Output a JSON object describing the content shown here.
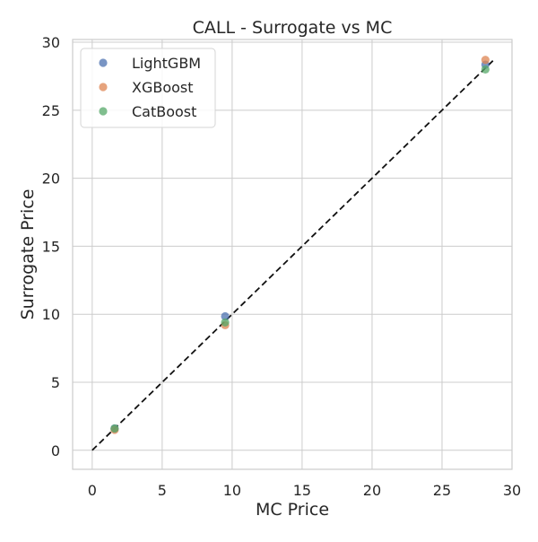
{
  "chart_data": {
    "type": "scatter",
    "title": "CALL - Surrogate vs MC",
    "xlabel": "MC Price",
    "ylabel": "Surrogate Price",
    "xlim": [
      -1.4,
      30.0
    ],
    "ylim": [
      -1.4,
      30.2
    ],
    "xticks": [
      0,
      5,
      10,
      15,
      20,
      25,
      30
    ],
    "yticks": [
      0,
      5,
      10,
      15,
      20,
      25,
      30
    ],
    "grid": true,
    "legend_position": "top-left",
    "reference_line": {
      "style": "dashed",
      "color": "#111111",
      "from": [
        0,
        0
      ],
      "to": [
        28.7,
        28.7
      ]
    },
    "series": [
      {
        "name": "LightGBM",
        "color": "#4c72b0",
        "x": [
          1.6,
          9.5,
          28.1
        ],
        "y": [
          1.6,
          9.85,
          28.35
        ]
      },
      {
        "name": "XGBoost",
        "color": "#dd8452",
        "x": [
          1.6,
          9.5,
          28.1
        ],
        "y": [
          1.5,
          9.2,
          28.7
        ]
      },
      {
        "name": "CatBoost",
        "color": "#55a868",
        "x": [
          1.6,
          9.5,
          28.1
        ],
        "y": [
          1.6,
          9.4,
          28.0
        ]
      }
    ]
  }
}
